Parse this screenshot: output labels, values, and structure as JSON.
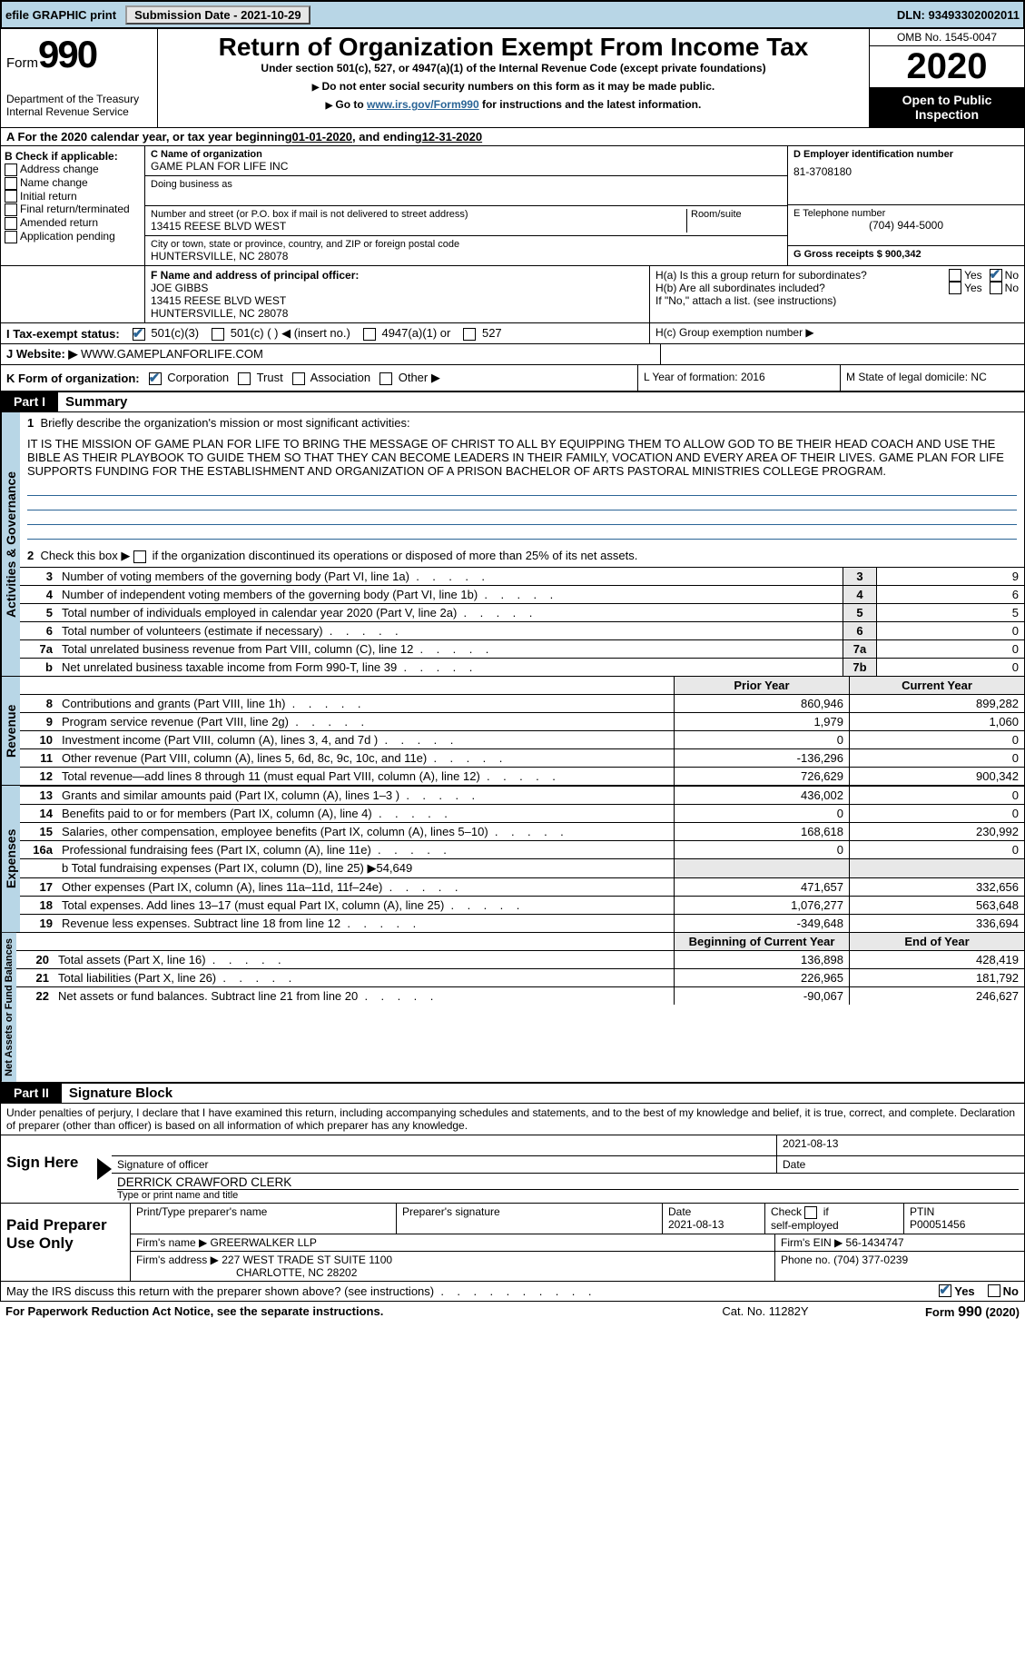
{
  "topbar": {
    "efile": "efile GRAPHIC print",
    "submission_label": "Submission Date - 2021-10-29",
    "dln_label": "DLN: 93493302002011"
  },
  "header": {
    "form_word": "Form",
    "form_number": "990",
    "department": "Department of the Treasury\nInternal Revenue Service",
    "title": "Return of Organization Exempt From Income Tax",
    "subtitle": "Under section 501(c), 527, or 4947(a)(1) of the Internal Revenue Code (except private foundations)",
    "note1": "Do not enter social security numbers on this form as it may be made public.",
    "note2_pre": "Go to ",
    "note2_link": "www.irs.gov/Form990",
    "note2_post": " for instructions and the latest information.",
    "omb": "OMB No. 1545-0047",
    "year": "2020",
    "inspection": "Open to Public Inspection"
  },
  "sectionA": {
    "text_pre": "A For the 2020 calendar year, or tax year beginning ",
    "begin": "01-01-2020",
    "mid": " , and ending ",
    "end": "12-31-2020"
  },
  "colB": {
    "header": "B Check if applicable:",
    "items": [
      "Address change",
      "Name change",
      "Initial return",
      "Final return/terminated",
      "Amended return",
      "Application pending"
    ]
  },
  "colC": {
    "name_label": "C Name of organization",
    "name": "GAME PLAN FOR LIFE INC",
    "dba_label": "Doing business as",
    "addr_label": "Number and street (or P.O. box if mail is not delivered to street address)",
    "addr": "13415 REESE BLVD WEST",
    "room_label": "Room/suite",
    "city_label": "City or town, state or province, country, and ZIP or foreign postal code",
    "city": "HUNTERSVILLE, NC  28078"
  },
  "colD": {
    "ein_label": "D Employer identification number",
    "ein": "81-3708180",
    "tel_label": "E Telephone number",
    "tel": "(704) 944-5000",
    "gross_label": "G Gross receipts $ 900,342"
  },
  "rowF": {
    "label": "F  Name and address of principal officer:",
    "name": "JOE GIBBS",
    "addr1": "13415 REESE BLVD WEST",
    "addr2": "HUNTERSVILLE, NC  28078"
  },
  "rowH": {
    "ha": "H(a)  Is this a group return for subordinates?",
    "hb": "H(b)  Are all subordinates included?",
    "hb_note": "If \"No,\" attach a list. (see instructions)",
    "hc": "H(c)  Group exemption number ▶",
    "yes": "Yes",
    "no": "No"
  },
  "rowI": {
    "label": "I   Tax-exempt status:",
    "opt1": "501(c)(3)",
    "opt2": "501(c) (   ) ◀ (insert no.)",
    "opt3": "4947(a)(1) or",
    "opt4": "527"
  },
  "rowJ": {
    "label": "J   Website: ▶",
    "value": "WWW.GAMEPLANFORLIFE.COM"
  },
  "rowK": {
    "label": "K Form of organization:",
    "opts": [
      "Corporation",
      "Trust",
      "Association",
      "Other ▶"
    ]
  },
  "rowL": {
    "label": "L Year of formation: 2016"
  },
  "rowM": {
    "label": "M State of legal domicile: NC"
  },
  "part1": {
    "tab": "Part I",
    "title": "Summary",
    "side1": "Activities & Governance",
    "side2": "Revenue",
    "side3": "Expenses",
    "side4": "Net Assets or Fund Balances",
    "l1_label": "1  Briefly describe the organization's mission or most significant activities:",
    "mission": "IT IS THE MISSION OF GAME PLAN FOR LIFE TO BRING THE MESSAGE OF CHRIST TO ALL BY EQUIPPING THEM TO ALLOW GOD TO BE THEIR HEAD COACH AND USE THE BIBLE AS THEIR PLAYBOOK TO GUIDE THEM SO THAT THEY CAN BECOME LEADERS IN THEIR FAMILY, VOCATION AND EVERY AREA OF THEIR LIVES. GAME PLAN FOR LIFE SUPPORTS FUNDING FOR THE ESTABLISHMENT AND ORGANIZATION OF A PRISON BACHELOR OF ARTS PASTORAL MINISTRIES COLLEGE PROGRAM.",
    "l2": "Check this box ▶         if the organization discontinued its operations or disposed of more than 25% of its net assets.",
    "lines_gov": [
      {
        "n": "3",
        "d": "Number of voting members of the governing body (Part VI, line 1a)",
        "b": "3",
        "v": "9"
      },
      {
        "n": "4",
        "d": "Number of independent voting members of the governing body (Part VI, line 1b)",
        "b": "4",
        "v": "6"
      },
      {
        "n": "5",
        "d": "Total number of individuals employed in calendar year 2020 (Part V, line 2a)",
        "b": "5",
        "v": "5"
      },
      {
        "n": "6",
        "d": "Total number of volunteers (estimate if necessary)",
        "b": "6",
        "v": "0"
      },
      {
        "n": "7a",
        "d": "Total unrelated business revenue from Part VIII, column (C), line 12",
        "b": "7a",
        "v": "0"
      },
      {
        "n": "b",
        "d": "Net unrelated business taxable income from Form 990-T, line 39",
        "b": "7b",
        "v": "0"
      }
    ],
    "hdr_prior": "Prior Year",
    "hdr_current": "Current Year",
    "lines_rev": [
      {
        "n": "8",
        "d": "Contributions and grants (Part VIII, line 1h)",
        "p": "860,946",
        "c": "899,282"
      },
      {
        "n": "9",
        "d": "Program service revenue (Part VIII, line 2g)",
        "p": "1,979",
        "c": "1,060"
      },
      {
        "n": "10",
        "d": "Investment income (Part VIII, column (A), lines 3, 4, and 7d )",
        "p": "0",
        "c": "0"
      },
      {
        "n": "11",
        "d": "Other revenue (Part VIII, column (A), lines 5, 6d, 8c, 9c, 10c, and 11e)",
        "p": "-136,296",
        "c": "0"
      },
      {
        "n": "12",
        "d": "Total revenue—add lines 8 through 11 (must equal Part VIII, column (A), line 12)",
        "p": "726,629",
        "c": "900,342"
      }
    ],
    "lines_exp": [
      {
        "n": "13",
        "d": "Grants and similar amounts paid (Part IX, column (A), lines 1–3 )",
        "p": "436,002",
        "c": "0"
      },
      {
        "n": "14",
        "d": "Benefits paid to or for members (Part IX, column (A), line 4)",
        "p": "0",
        "c": "0"
      },
      {
        "n": "15",
        "d": "Salaries, other compensation, employee benefits (Part IX, column (A), lines 5–10)",
        "p": "168,618",
        "c": "230,992"
      },
      {
        "n": "16a",
        "d": "Professional fundraising fees (Part IX, column (A), line 11e)",
        "p": "0",
        "c": "0"
      }
    ],
    "l16b": "b   Total fundraising expenses (Part IX, column (D), line 25) ▶54,649",
    "lines_exp2": [
      {
        "n": "17",
        "d": "Other expenses (Part IX, column (A), lines 11a–11d, 11f–24e)",
        "p": "471,657",
        "c": "332,656"
      },
      {
        "n": "18",
        "d": "Total expenses. Add lines 13–17 (must equal Part IX, column (A), line 25)",
        "p": "1,076,277",
        "c": "563,648"
      },
      {
        "n": "19",
        "d": "Revenue less expenses. Subtract line 18 from line 12",
        "p": "-349,648",
        "c": "336,694"
      }
    ],
    "hdr_boy": "Beginning of Current Year",
    "hdr_eoy": "End of Year",
    "lines_net": [
      {
        "n": "20",
        "d": "Total assets (Part X, line 16)",
        "p": "136,898",
        "c": "428,419"
      },
      {
        "n": "21",
        "d": "Total liabilities (Part X, line 26)",
        "p": "226,965",
        "c": "181,792"
      },
      {
        "n": "22",
        "d": "Net assets or fund balances. Subtract line 21 from line 20",
        "p": "-90,067",
        "c": "246,627"
      }
    ]
  },
  "part2": {
    "tab": "Part II",
    "title": "Signature Block",
    "perjury": "Under penalties of perjury, I declare that I have examined this return, including accompanying schedules and statements, and to the best of my knowledge and belief, it is true, correct, and complete. Declaration of preparer (other than officer) is based on all information of which preparer has any knowledge.",
    "sign_here": "Sign Here",
    "sig_officer": "Signature of officer",
    "sig_date": "2021-08-13",
    "officer_name": "DERRICK CRAWFORD CLERK",
    "type_name": "Type or print name and title",
    "paid": "Paid Preparer Use Only",
    "print_name_h": "Print/Type preparer's name",
    "prep_sig_h": "Preparer's signature",
    "date_h": "Date",
    "date_v": "2021-08-13",
    "check_self": "Check          if self-employed",
    "ptin_h": "PTIN",
    "ptin": "P00051456",
    "firm_name_l": "Firm's name    ▶",
    "firm_name": "GREERWALKER LLP",
    "firm_ein_l": "Firm's EIN ▶",
    "firm_ein": "56-1434747",
    "firm_addr_l": "Firm's address ▶",
    "firm_addr": "227 WEST TRADE ST SUITE 1100",
    "firm_city": "CHARLOTTE, NC  28202",
    "phone_l": "Phone no.",
    "phone": "(704) 377-0239"
  },
  "footer": {
    "discuss": "May the IRS discuss this return with the preparer shown above? (see instructions)",
    "yes": "Yes",
    "no": "No",
    "paperwork": "For Paperwork Reduction Act Notice, see the separate instructions.",
    "cat": "Cat. No. 11282Y",
    "form": "Form 990 (2020)"
  }
}
